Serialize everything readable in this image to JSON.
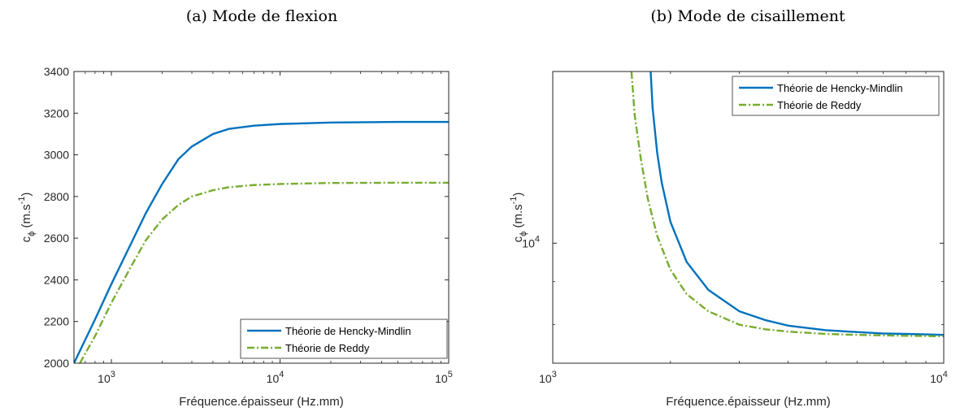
{
  "chart_data": [
    {
      "type": "line",
      "panel_title": "(a) Mode de flexion",
      "xlabel": "Fréquence.épaisseur (Hz.mm)",
      "ylabel_main": "c",
      "ylabel_sub": "ϕ",
      "ylabel_unit_pre": " (m.s",
      "ylabel_unit_sup": "-1",
      "ylabel_unit_post": ")",
      "x_scale": "log",
      "y_scale": "linear",
      "xlim": [
        600,
        100000
      ],
      "ylim": [
        2000,
        3400
      ],
      "x_ticks": [
        1000,
        10000,
        100000
      ],
      "x_tick_labels": [
        {
          "base": "10",
          "exp": "3"
        },
        {
          "base": "10",
          "exp": "4"
        },
        {
          "base": "10",
          "exp": "5"
        }
      ],
      "y_ticks": [
        2000,
        2200,
        2400,
        2600,
        2800,
        3000,
        3200,
        3400
      ],
      "y_tick_labels": [
        "2000",
        "2200",
        "2400",
        "2600",
        "2800",
        "3000",
        "3200",
        "3400"
      ],
      "legend_position": "bottom-right",
      "series": [
        {
          "name": "Théorie de Hencky-Mindlin",
          "color": "#0072BD",
          "style": "solid",
          "x": [
            600,
            800,
            1000,
            1300,
            1600,
            2000,
            2500,
            3000,
            4000,
            5000,
            7000,
            10000,
            20000,
            50000,
            100000
          ],
          "y": [
            2000,
            2210,
            2380,
            2570,
            2720,
            2860,
            2980,
            3040,
            3100,
            3125,
            3140,
            3148,
            3155,
            3158,
            3158
          ]
        },
        {
          "name": "Théorie de Reddy",
          "color": "#77AC30",
          "style": "dashdot",
          "x": [
            650,
            800,
            1000,
            1300,
            1600,
            2000,
            2500,
            3000,
            4000,
            5000,
            7000,
            10000,
            20000,
            50000,
            100000
          ],
          "y": [
            2000,
            2130,
            2290,
            2460,
            2590,
            2690,
            2760,
            2800,
            2830,
            2845,
            2855,
            2860,
            2865,
            2866,
            2866
          ]
        }
      ]
    },
    {
      "type": "line",
      "panel_title": "(b) Mode de cisaillement",
      "xlabel": "Fréquence.épaisseur (Hz.mm)",
      "ylabel_main": "c",
      "ylabel_sub": "ϕ",
      "ylabel_unit_pre": " (m.s",
      "ylabel_unit_sup": "-1",
      "ylabel_unit_post": ")",
      "x_scale": "log",
      "y_scale": "log",
      "xlim": [
        1000,
        10000
      ],
      "ylim": [
        7200,
        16000
      ],
      "x_ticks": [
        1000,
        10000
      ],
      "x_tick_labels": [
        {
          "base": "10",
          "exp": "3"
        },
        {
          "base": "10",
          "exp": "4"
        }
      ],
      "y_ticks": [
        10000
      ],
      "y_tick_labels": [
        {
          "base": "10",
          "exp": "4"
        }
      ],
      "legend_position": "top-right",
      "series": [
        {
          "name": "Théorie de Hencky-Mindlin",
          "color": "#0072BD",
          "style": "solid",
          "x": [
            1780,
            1800,
            1850,
            1900,
            2000,
            2200,
            2500,
            3000,
            3500,
            4000,
            5000,
            6000,
            7000,
            8000,
            9000,
            10000
          ],
          "y": [
            16000,
            14500,
            12800,
            11800,
            10600,
            9500,
            8800,
            8300,
            8100,
            7980,
            7880,
            7840,
            7810,
            7800,
            7790,
            7780
          ]
        },
        {
          "name": "Théorie de Reddy",
          "color": "#77AC30",
          "style": "dashdot",
          "x": [
            1590,
            1620,
            1680,
            1750,
            1850,
            2000,
            2200,
            2500,
            3000,
            3500,
            4000,
            5000,
            6000,
            7000,
            8000,
            9000,
            10000
          ],
          "y": [
            16000,
            14200,
            12600,
            11300,
            10200,
            9300,
            8700,
            8300,
            8000,
            7900,
            7850,
            7800,
            7780,
            7770,
            7760,
            7755,
            7750
          ]
        }
      ]
    }
  ]
}
